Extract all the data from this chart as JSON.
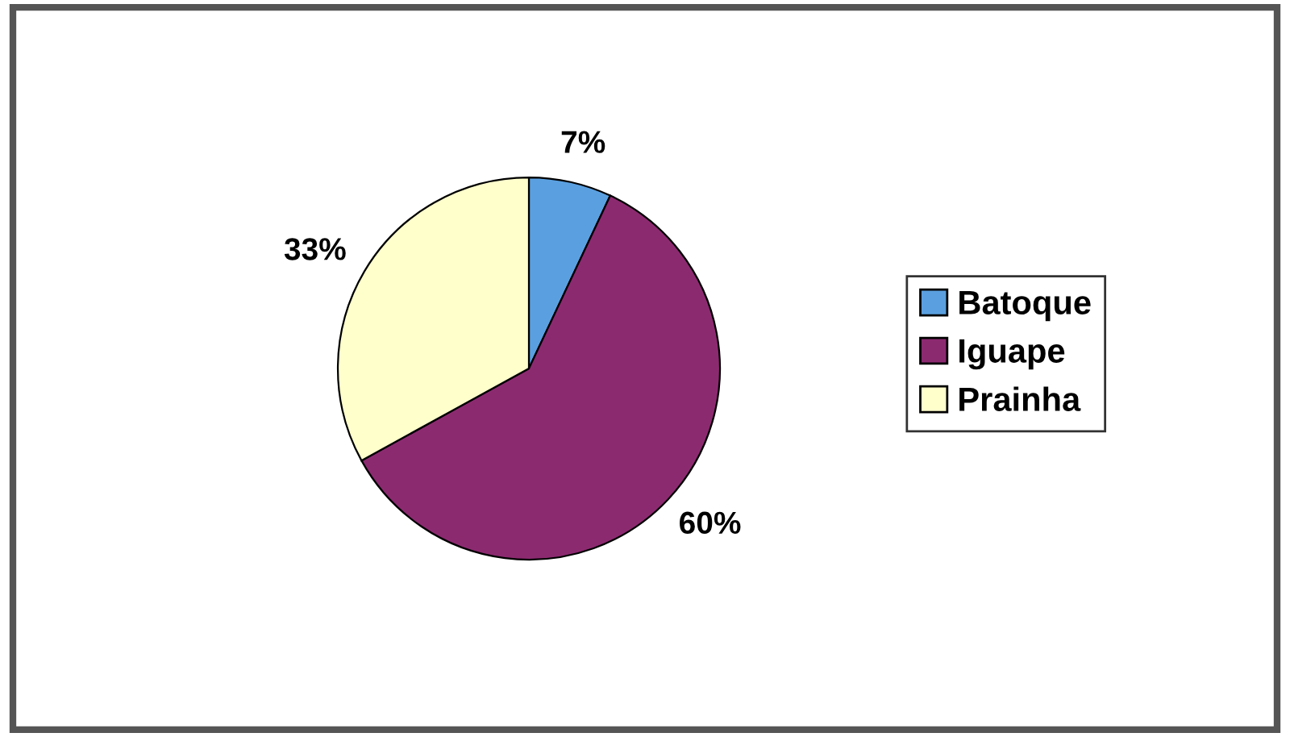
{
  "chart_data": {
    "type": "pie",
    "categories": [
      "Batoque",
      "Iguape",
      "Prainha"
    ],
    "values": [
      7,
      60,
      33
    ],
    "colors": [
      "#5aa0e0",
      "#8c2a70",
      "#ffffcc"
    ],
    "value_labels": [
      "7%",
      "60%",
      "33%"
    ],
    "legend": "right"
  }
}
